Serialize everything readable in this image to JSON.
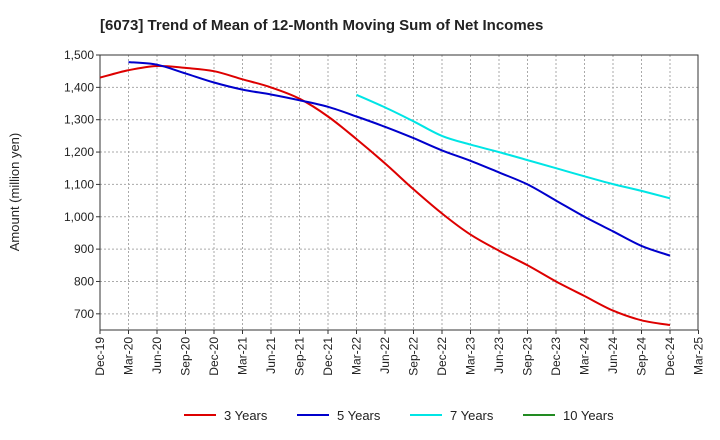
{
  "chart_data": {
    "type": "line",
    "title": "[6073]  Trend of Mean of 12-Month Moving Sum of Net Incomes",
    "xlabel": "",
    "ylabel": "Amount (million yen)",
    "ylim": [
      650,
      1500
    ],
    "yticks": [
      700,
      800,
      900,
      1000,
      1100,
      1200,
      1300,
      1400,
      1500
    ],
    "ytick_labels": [
      "700",
      "800",
      "900",
      "1,000",
      "1,100",
      "1,200",
      "1,300",
      "1,400",
      "1,500"
    ],
    "x_categories": [
      "Dec-19",
      "Mar-20",
      "Jun-20",
      "Sep-20",
      "Dec-20",
      "Mar-21",
      "Jun-21",
      "Sep-21",
      "Dec-21",
      "Mar-22",
      "Jun-22",
      "Sep-22",
      "Dec-22",
      "Mar-23",
      "Jun-23",
      "Sep-23",
      "Dec-23",
      "Mar-24",
      "Jun-24",
      "Sep-24",
      "Dec-24",
      "Mar-25"
    ],
    "grid": true,
    "legend_position": "bottom",
    "series": [
      {
        "name": "3 Years",
        "color": "#dd0000",
        "x": [
          "Dec-19",
          "Mar-20",
          "Jun-20",
          "Sep-20",
          "Dec-20",
          "Mar-21",
          "Jun-21",
          "Sep-21",
          "Dec-21",
          "Mar-22",
          "Jun-22",
          "Sep-22",
          "Dec-22",
          "Mar-23",
          "Jun-23",
          "Sep-23",
          "Dec-23",
          "Mar-24",
          "Jun-24",
          "Sep-24",
          "Dec-24"
        ],
        "values": [
          1430,
          1453,
          1466,
          1460,
          1450,
          1425,
          1400,
          1365,
          1310,
          1240,
          1165,
          1085,
          1010,
          945,
          895,
          850,
          800,
          755,
          710,
          680,
          665
        ]
      },
      {
        "name": "5 Years",
        "color": "#0000cc",
        "x": [
          "Mar-20",
          "Jun-20",
          "Sep-20",
          "Dec-20",
          "Mar-21",
          "Jun-21",
          "Sep-21",
          "Dec-21",
          "Mar-22",
          "Jun-22",
          "Sep-22",
          "Dec-22",
          "Mar-23",
          "Jun-23",
          "Sep-23",
          "Dec-23",
          "Mar-24",
          "Jun-24",
          "Sep-24",
          "Dec-24"
        ],
        "values": [
          1478,
          1470,
          1443,
          1415,
          1393,
          1378,
          1360,
          1340,
          1310,
          1278,
          1243,
          1205,
          1173,
          1137,
          1100,
          1050,
          1000,
          955,
          910,
          880
        ]
      },
      {
        "name": "7 Years",
        "color": "#00e5e5",
        "x": [
          "Mar-22",
          "Jun-22",
          "Sep-22",
          "Dec-22",
          "Mar-23",
          "Jun-23",
          "Sep-23",
          "Dec-23",
          "Mar-24",
          "Jun-24",
          "Sep-24",
          "Dec-24"
        ],
        "values": [
          1377,
          1338,
          1295,
          1250,
          1223,
          1200,
          1175,
          1150,
          1125,
          1101,
          1080,
          1057
        ]
      },
      {
        "name": "10 Years",
        "color": "#228b22",
        "x": [],
        "values": []
      }
    ]
  }
}
